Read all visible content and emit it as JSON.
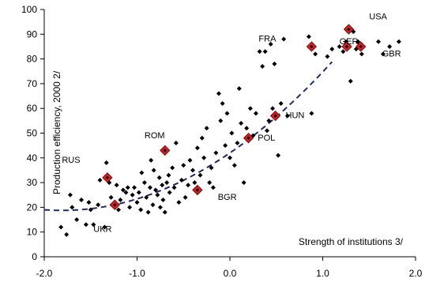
{
  "chart_data": {
    "type": "scatter",
    "xlabel": "Strength of institutions 3/",
    "ylabel": "Production efficiency, 2000 2/",
    "xlim": [
      -2.0,
      2.0
    ],
    "ylim": [
      0,
      100
    ],
    "x_ticks": [
      "-2.0",
      "-1.0",
      "0.0",
      "1.0",
      "2.0"
    ],
    "y_ticks": [
      "0",
      "10",
      "20",
      "30",
      "40",
      "50",
      "60",
      "70",
      "80",
      "90",
      "100"
    ],
    "grid": false,
    "trend_line": {
      "style": "dashed",
      "color": "#1f2a6e"
    },
    "colors": {
      "points": "#000000",
      "highlight_fill": "#d42020",
      "highlight_edge": "#7a0d0d",
      "trend": "#1f2a6e"
    },
    "highlighted": [
      {
        "label": "RUS",
        "x": -1.32,
        "y": 32
      },
      {
        "label": "UKR",
        "x": -1.24,
        "y": 21
      },
      {
        "label": "ROM",
        "x": -0.7,
        "y": 43
      },
      {
        "label": "BGR",
        "x": -0.35,
        "y": 27
      },
      {
        "label": "POL",
        "x": 0.2,
        "y": 48
      },
      {
        "label": "HUN",
        "x": 0.49,
        "y": 57
      },
      {
        "label": "FRA",
        "x": 0.88,
        "y": 85
      },
      {
        "label": "GER",
        "x": 1.26,
        "y": 85
      },
      {
        "label": "USA",
        "x": 1.28,
        "y": 92
      },
      {
        "label": "GBR",
        "x": 1.41,
        "y": 85
      }
    ],
    "annotations": [
      {
        "text": "RUS",
        "x": -1.81,
        "y": 38
      },
      {
        "text": "UKR",
        "x": -1.47,
        "y": 10
      },
      {
        "text": "ROM",
        "x": -0.92,
        "y": 48
      },
      {
        "text": "BGR",
        "x": -0.13,
        "y": 23
      },
      {
        "text": "POL",
        "x": 0.3,
        "y": 47
      },
      {
        "text": "HUN",
        "x": 0.6,
        "y": 56
      },
      {
        "text": "FRA",
        "x": 0.31,
        "y": 87
      },
      {
        "text": "GER",
        "x": 1.18,
        "y": 86
      },
      {
        "text": "USA",
        "x": 1.5,
        "y": 96
      },
      {
        "text": "GBR",
        "x": 1.64,
        "y": 81
      }
    ],
    "points": [
      [
        -1.82,
        12
      ],
      [
        -1.76,
        9
      ],
      [
        -1.72,
        25
      ],
      [
        -1.7,
        20
      ],
      [
        -1.65,
        15
      ],
      [
        -1.6,
        23
      ],
      [
        -1.55,
        13
      ],
      [
        -1.52,
        22
      ],
      [
        -1.5,
        19
      ],
      [
        -1.47,
        13
      ],
      [
        -1.42,
        21
      ],
      [
        -1.4,
        31
      ],
      [
        -1.35,
        12
      ],
      [
        -1.33,
        38
      ],
      [
        -1.3,
        30
      ],
      [
        -1.28,
        24
      ],
      [
        -1.22,
        29
      ],
      [
        -1.2,
        19
      ],
      [
        -1.18,
        23
      ],
      [
        -1.15,
        27
      ],
      [
        -1.12,
        26
      ],
      [
        -1.1,
        28
      ],
      [
        -1.08,
        20
      ],
      [
        -1.05,
        25
      ],
      [
        -1.03,
        28
      ],
      [
        -1.0,
        22
      ],
      [
        -0.98,
        26
      ],
      [
        -0.96,
        19
      ],
      [
        -0.95,
        34
      ],
      [
        -0.92,
        30
      ],
      [
        -0.9,
        24
      ],
      [
        -0.88,
        18
      ],
      [
        -0.86,
        28
      ],
      [
        -0.85,
        39
      ],
      [
        -0.83,
        21
      ],
      [
        -0.82,
        35
      ],
      [
        -0.8,
        27
      ],
      [
        -0.78,
        25
      ],
      [
        -0.76,
        32
      ],
      [
        -0.75,
        20
      ],
      [
        -0.73,
        29
      ],
      [
        -0.72,
        23
      ],
      [
        -0.7,
        18
      ],
      [
        -0.68,
        30
      ],
      [
        -0.66,
        33
      ],
      [
        -0.65,
        26
      ],
      [
        -0.62,
        36
      ],
      [
        -0.6,
        28
      ],
      [
        -0.58,
        46
      ],
      [
        -0.55,
        22
      ],
      [
        -0.52,
        31
      ],
      [
        -0.5,
        37
      ],
      [
        -0.48,
        24
      ],
      [
        -0.45,
        29
      ],
      [
        -0.43,
        39
      ],
      [
        -0.4,
        35
      ],
      [
        -0.38,
        30
      ],
      [
        -0.35,
        44
      ],
      [
        -0.32,
        33
      ],
      [
        -0.3,
        48
      ],
      [
        -0.28,
        40
      ],
      [
        -0.25,
        52
      ],
      [
        -0.22,
        30
      ],
      [
        -0.2,
        36
      ],
      [
        -0.18,
        28
      ],
      [
        -0.15,
        42
      ],
      [
        -0.12,
        66
      ],
      [
        -0.1,
        55
      ],
      [
        -0.08,
        62
      ],
      [
        -0.05,
        45
      ],
      [
        -0.03,
        58
      ],
      [
        0.0,
        40
      ],
      [
        0.02,
        50
      ],
      [
        0.05,
        37
      ],
      [
        0.08,
        46
      ],
      [
        0.1,
        68
      ],
      [
        0.12,
        54
      ],
      [
        0.15,
        30
      ],
      [
        0.18,
        52
      ],
      [
        0.22,
        60
      ],
      [
        0.25,
        49
      ],
      [
        0.28,
        58
      ],
      [
        0.32,
        83
      ],
      [
        0.35,
        77
      ],
      [
        0.38,
        83
      ],
      [
        0.4,
        51
      ],
      [
        0.42,
        55
      ],
      [
        0.44,
        86
      ],
      [
        0.46,
        60
      ],
      [
        0.48,
        78
      ],
      [
        0.52,
        41
      ],
      [
        0.55,
        62
      ],
      [
        0.58,
        88
      ],
      [
        0.62,
        57
      ],
      [
        0.85,
        89
      ],
      [
        0.88,
        58
      ],
      [
        0.92,
        82
      ],
      [
        1.05,
        81
      ],
      [
        1.1,
        84
      ],
      [
        1.18,
        85
      ],
      [
        1.22,
        83
      ],
      [
        1.25,
        87
      ],
      [
        1.3,
        71
      ],
      [
        1.33,
        91
      ],
      [
        1.36,
        84
      ],
      [
        1.38,
        87
      ],
      [
        1.42,
        82
      ],
      [
        1.6,
        87
      ],
      [
        1.65,
        82
      ],
      [
        1.72,
        85
      ],
      [
        1.82,
        87
      ]
    ]
  }
}
